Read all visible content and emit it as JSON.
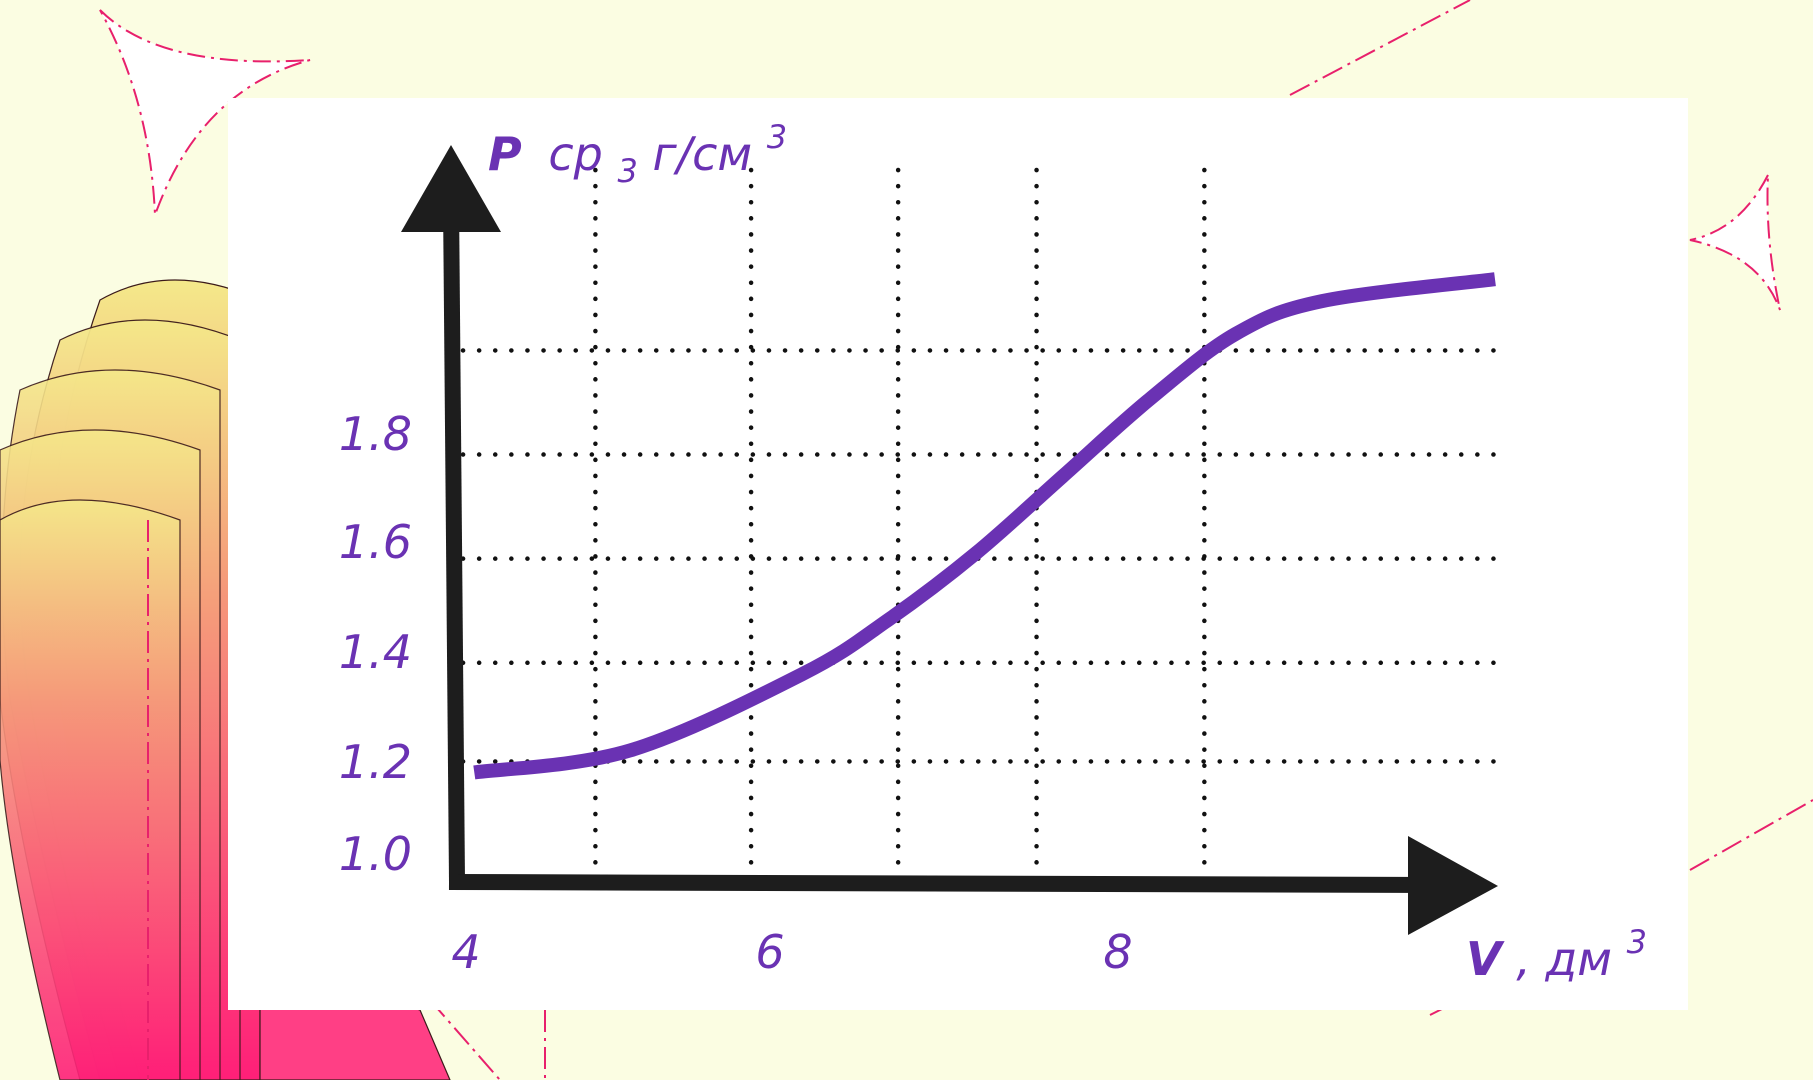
{
  "chart_data": {
    "type": "line",
    "y_axis_label": {
      "symbol": "P",
      "subscript_prefix": "ср",
      "subscript": "3",
      "unit": " г/см",
      "unit_power": "3"
    },
    "x_axis_label": {
      "symbol": "V",
      "unit": ", дм",
      "unit_power": "3"
    },
    "x_ticks": [
      "4",
      "6",
      "8"
    ],
    "y_ticks": [
      "1.0",
      "1.2",
      "1.4",
      "1.6",
      "1.8"
    ],
    "xlim": [
      4,
      10
    ],
    "ylim": [
      1.0,
      2.1
    ],
    "grid": true,
    "grid_style": "dotted",
    "series": [
      {
        "color": "#6a32b3",
        "x": [
          4.1,
          5.0,
          6.0,
          6.5,
          7.0,
          7.5,
          8.0,
          8.5,
          9.0,
          10.0
        ],
        "y": [
          1.2,
          1.24,
          1.38,
          1.48,
          1.6,
          1.74,
          1.88,
          2.0,
          2.06,
          2.1
        ]
      }
    ],
    "colors": {
      "curve": "#6a32b3",
      "axes": "#1d1d1d",
      "labels": "#6a32b3",
      "background": "#fbfde2",
      "card": "#ffffff"
    }
  }
}
